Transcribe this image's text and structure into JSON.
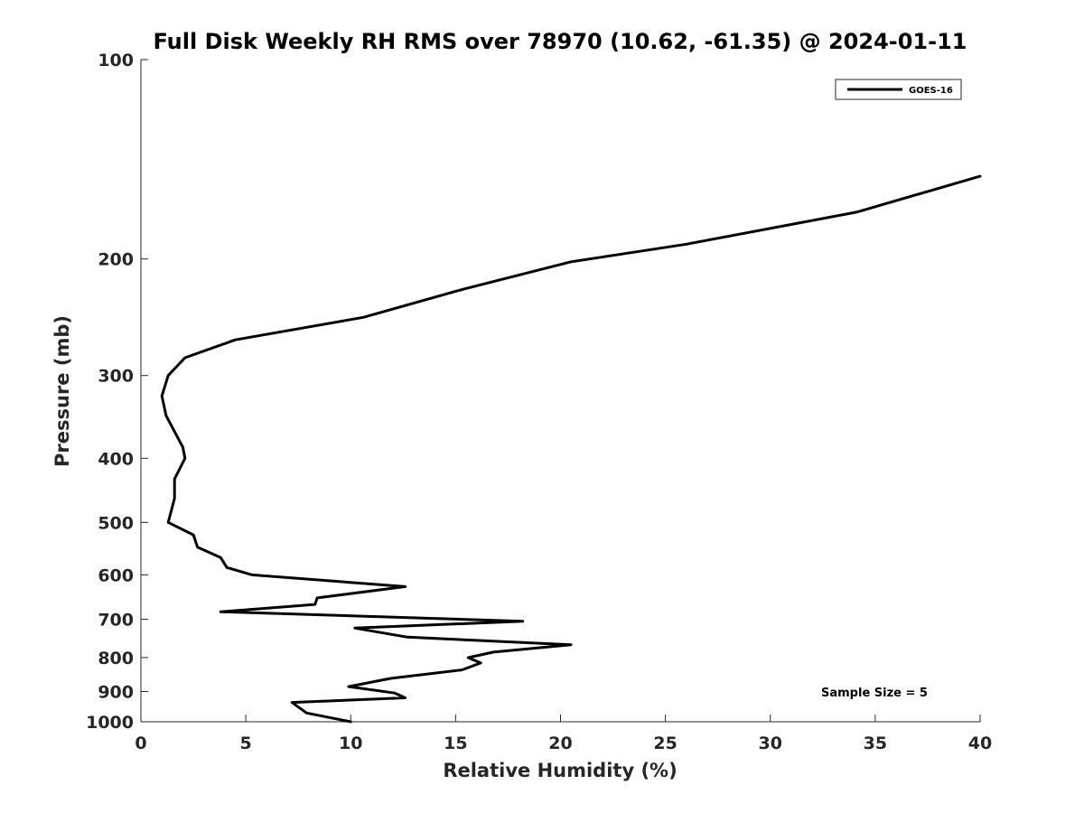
{
  "chart_data": {
    "type": "line",
    "title": "Full Disk Weekly RH RMS over 78970 (10.62, -61.35) @ 2024-01-11",
    "xlabel": "Relative Humidity (%)",
    "ylabel": "Pressure (mb)",
    "xlim": [
      0,
      40
    ],
    "ylim": [
      100,
      1000
    ],
    "y_scale": "log",
    "y_reversed": true,
    "grid": false,
    "legend_position": "top-right",
    "x_ticks": [
      0,
      5,
      10,
      15,
      20,
      25,
      30,
      35,
      40
    ],
    "x_tick_labels": [
      "0",
      "5",
      "10",
      "15",
      "20",
      "25",
      "30",
      "35",
      "40"
    ],
    "y_ticks": [
      100,
      200,
      300,
      400,
      500,
      600,
      700,
      800,
      900,
      1000
    ],
    "y_tick_labels": [
      "100",
      "200",
      "300",
      "400",
      "500",
      "600",
      "700",
      "800",
      "900",
      "1000"
    ],
    "series": [
      {
        "name": "GOES-16",
        "color": "#000000",
        "rh": [
          40.0,
          34.1,
          26.0,
          20.5,
          15.4,
          10.6,
          4.5,
          2.1,
          1.3,
          1.0,
          1.2,
          2.0,
          2.1,
          1.6,
          1.6,
          1.3,
          2.5,
          2.7,
          3.8,
          4.1,
          5.3,
          12.6,
          8.4,
          8.3,
          3.8,
          18.2,
          10.2,
          12.7,
          20.5,
          16.8,
          15.6,
          16.2,
          15.3,
          11.9,
          9.9,
          12.1,
          12.6,
          7.2,
          7.5,
          7.9,
          10.0
        ],
        "pressure": [
          150,
          170,
          190,
          202,
          222,
          245,
          265,
          282,
          300,
          322,
          345,
          385,
          400,
          430,
          460,
          500,
          522,
          545,
          565,
          585,
          600,
          625,
          650,
          665,
          682,
          705,
          722,
          745,
          765,
          785,
          800,
          815,
          835,
          860,
          885,
          905,
          920,
          935,
          950,
          970,
          1000
        ]
      }
    ],
    "legend": [
      "GOES-16"
    ],
    "annotation": "Sample Size = 5"
  }
}
